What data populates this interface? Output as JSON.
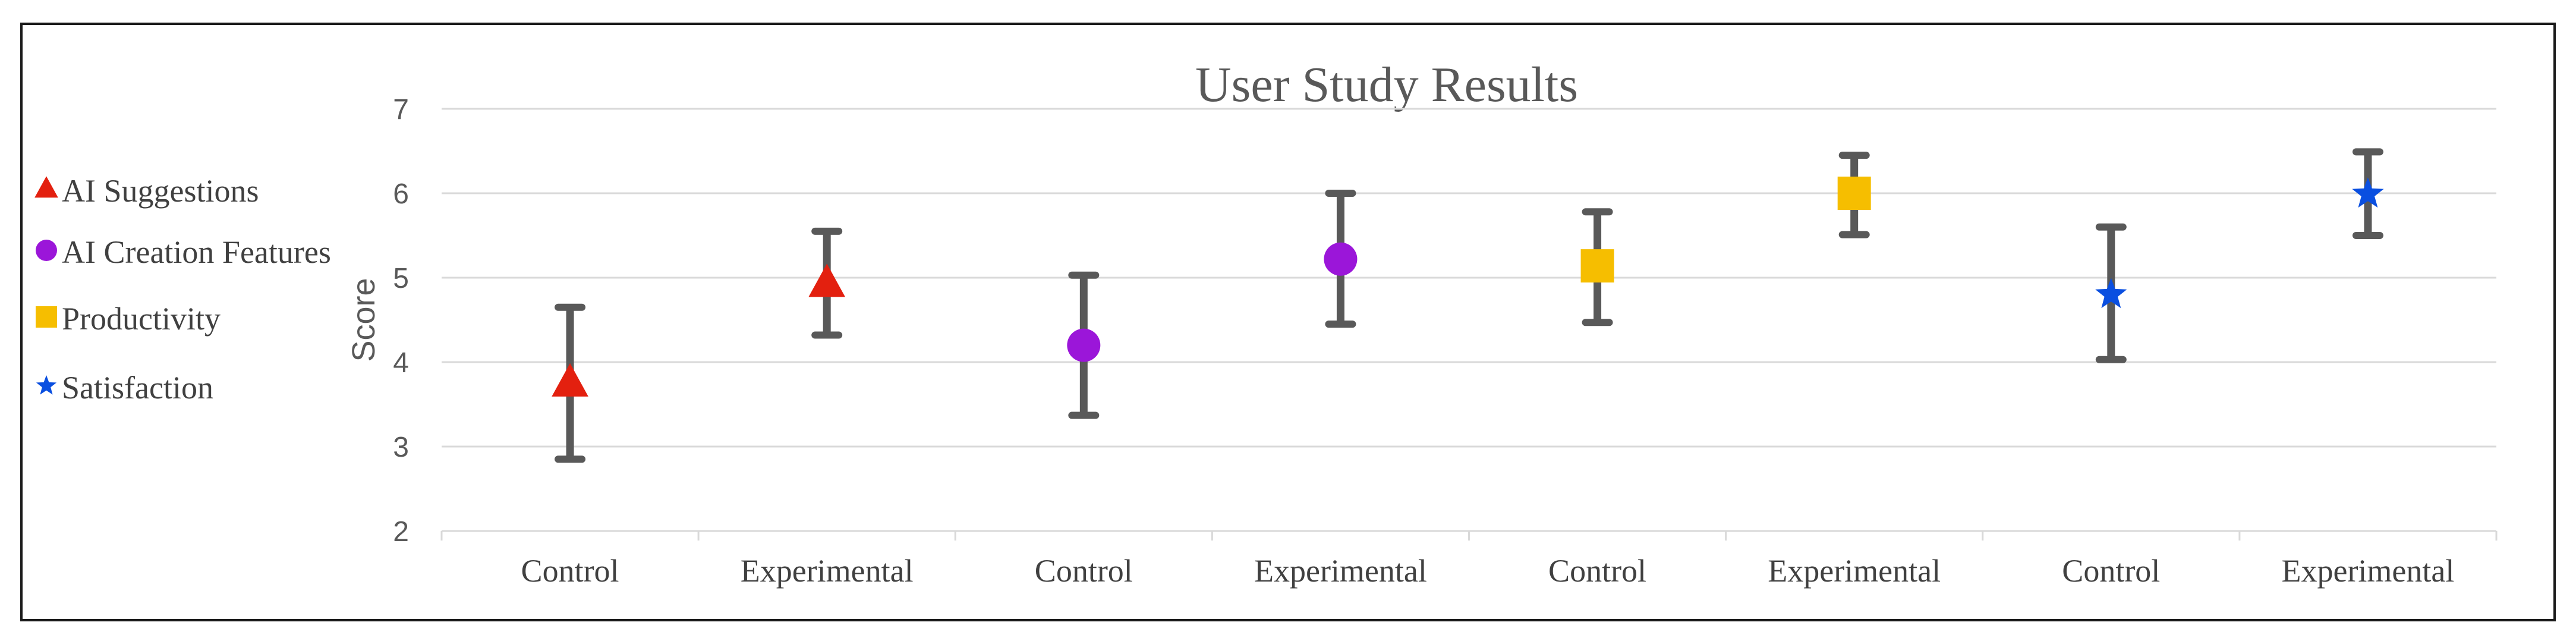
{
  "chart_data": {
    "type": "scatter",
    "title": "User Study Results",
    "xlabel": "",
    "ylabel": "Score",
    "ylim": [
      2,
      7
    ],
    "yticks": [
      2,
      3,
      4,
      5,
      6,
      7
    ],
    "grid": true,
    "legend_position": "left",
    "categories": [
      "Control",
      "Experimental",
      "Control",
      "Experimental",
      "Control",
      "Experimental",
      "Control",
      "Experimental"
    ],
    "series": [
      {
        "name": "AI Suggestions",
        "marker": "triangle",
        "color": "#E3200F",
        "points": [
          {
            "category_index": 0,
            "value": 3.75,
            "low": 2.85,
            "high": 4.65
          },
          {
            "category_index": 1,
            "value": 4.93,
            "low": 4.32,
            "high": 5.55
          }
        ]
      },
      {
        "name": "AI Creation Features",
        "marker": "circle",
        "color": "#9B16D9",
        "points": [
          {
            "category_index": 2,
            "value": 4.2,
            "low": 3.37,
            "high": 5.03
          },
          {
            "category_index": 3,
            "value": 5.22,
            "low": 4.45,
            "high": 6.0
          }
        ]
      },
      {
        "name": "Productivity",
        "marker": "square",
        "color": "#F6BE00",
        "points": [
          {
            "category_index": 4,
            "value": 5.14,
            "low": 4.47,
            "high": 5.78
          },
          {
            "category_index": 5,
            "value": 6.0,
            "low": 5.51,
            "high": 6.45
          }
        ]
      },
      {
        "name": "Satisfaction",
        "marker": "star",
        "color": "#0A4FE0",
        "points": [
          {
            "category_index": 6,
            "value": 4.8,
            "low": 4.03,
            "high": 5.6
          },
          {
            "category_index": 7,
            "value": 5.99,
            "low": 5.5,
            "high": 6.49
          }
        ]
      }
    ]
  }
}
